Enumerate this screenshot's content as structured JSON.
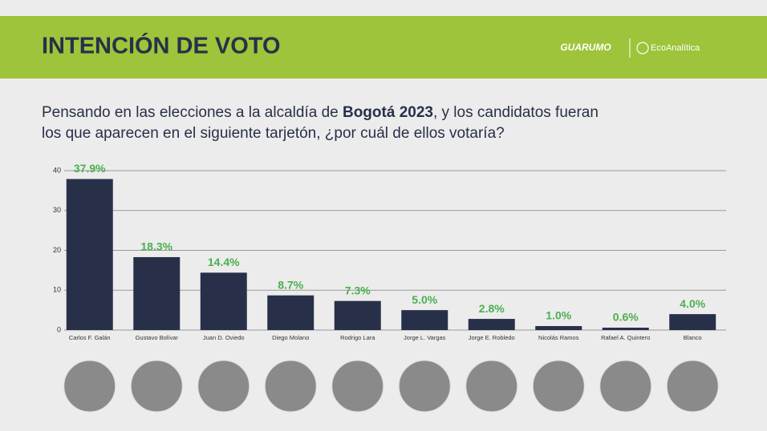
{
  "header": {
    "title": "INTENCIÓN DE VOTO",
    "logos": [
      "GUARUMO",
      "EcoAnalítica"
    ]
  },
  "question": {
    "line1": [
      "Pensando en las elecciones a la alcaldía de ",
      "Bogotá 2023",
      ", y los candidatos fueran"
    ],
    "line2": "los que aparecen en el siguiente tarjetón, ¿por cuál de ellos votaría?"
  },
  "chart_data": {
    "type": "bar",
    "categories": [
      "Carlos F. Galán",
      "Gustavo Bolívar",
      "Juan D. Oviedo",
      "Diego Molano",
      "Rodrigo Lara",
      "Jorge L. Vargas",
      "Jorge E. Robledo",
      "Nicolás Ramos",
      "Rafael A. Quintero",
      "Blanco"
    ],
    "values": [
      37.9,
      18.3,
      14.4,
      8.7,
      7.3,
      5.0,
      2.8,
      1.0,
      0.6,
      4.0
    ],
    "value_labels": [
      "37.9%",
      "18.3%",
      "14.4%",
      "8.7%",
      "7.3%",
      "5.0%",
      "2.8%",
      "1.0%",
      "0.6%",
      "4.0%"
    ],
    "color": "#283049",
    "label_color": "#4caf50",
    "ylim": [
      0,
      40
    ],
    "yticks": [
      0,
      10,
      20,
      30,
      40
    ],
    "grid": true
  }
}
